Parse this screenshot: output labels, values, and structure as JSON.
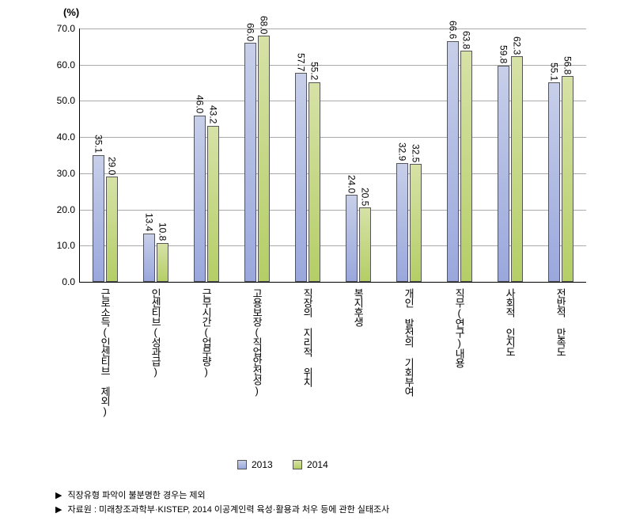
{
  "chart": {
    "type": "bar",
    "y_axis_title": "(%)",
    "ylim": [
      0,
      70
    ],
    "ytick_step": 10,
    "yticks": [
      "0.0",
      "10.0",
      "20.0",
      "30.0",
      "40.0",
      "50.0",
      "60.0",
      "70.0"
    ],
    "grid_color": "#aaaaaa",
    "background_color": "#ffffff",
    "bar_border_color": "#555555",
    "series": [
      {
        "name": "2013",
        "color": "#c7cfe9",
        "gradient_to": "#9aa7dc"
      },
      {
        "name": "2014",
        "color": "#d6e2a6",
        "gradient_to": "#b5ce66"
      }
    ],
    "categories": [
      "근로소득(인센티브 제외)",
      "인센티브(성과급)",
      "근무시간(업무량)",
      "고용보장(직업안전성)",
      "직장의 지리적 위치",
      "복지후생",
      "개인 발전의 기회부여",
      "직무(연구)내용",
      "사회적 인지도",
      "전반적 만족도"
    ],
    "values": {
      "2013": [
        35.1,
        13.4,
        46.0,
        66.0,
        57.7,
        24.0,
        32.9,
        66.6,
        59.8,
        55.1
      ],
      "2014": [
        29.0,
        10.8,
        43.2,
        68.0,
        55.2,
        20.5,
        32.5,
        63.8,
        62.3,
        56.8
      ]
    },
    "value_labels": {
      "2013": [
        "35.1",
        "13.4",
        "46.0",
        "66.0",
        "57.7",
        "24.0",
        "32.9",
        "66.6",
        "59.8",
        "55.1"
      ],
      "2014": [
        "29.0",
        "10.8",
        "43.2",
        "68.0",
        "55.2",
        "20.5",
        "32.5",
        "63.8",
        "62.3",
        "56.8"
      ]
    },
    "label_fontsize": 12,
    "category_fontsize": 13
  },
  "legend": {
    "items": [
      "2013",
      "2014"
    ]
  },
  "footnotes": {
    "marker": "▶",
    "lines": [
      "직장유형 파악이 불분명한 경우는 제외",
      "자료원 : 미래창조과학부·KISTEP, 2014 이공계인력 육성·활용과 처우 등에 관한 실태조사"
    ]
  }
}
